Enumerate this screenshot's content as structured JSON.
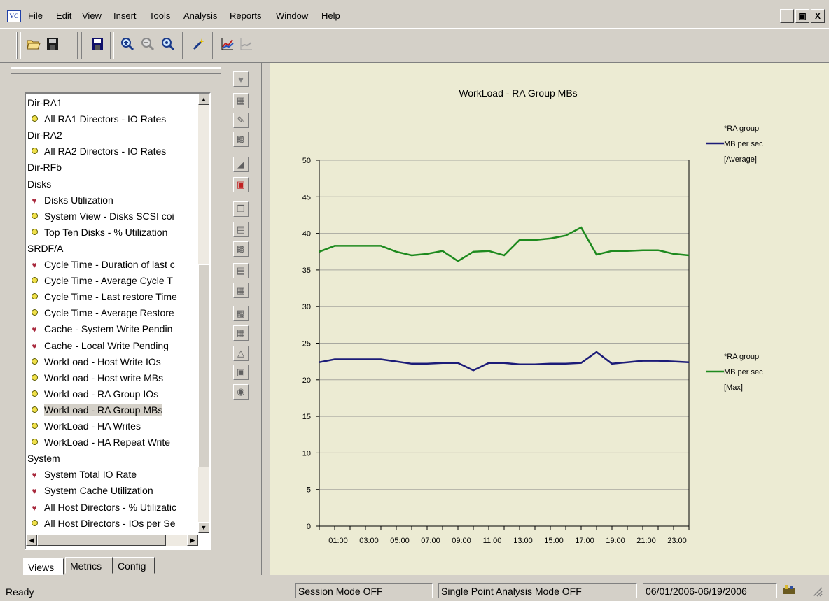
{
  "app": {
    "icon_text": "VC",
    "menu": [
      "File",
      "Edit",
      "View",
      "Insert",
      "Tools",
      "Analysis",
      "Reports",
      "Window",
      "Help"
    ],
    "window_buttons": [
      "_",
      "▣",
      "X"
    ]
  },
  "toolbar": {
    "buttons": [
      "open-folder-icon",
      "save-disk-icon",
      "save-icon",
      "zoom-in-icon",
      "zoom-out-icon",
      "zoom-reset-icon",
      "magic-wand-icon",
      "line-chart-icon",
      "chart-disabled-icon"
    ]
  },
  "tree": {
    "items": [
      {
        "label": "Dir-RA1",
        "kind": "group"
      },
      {
        "label": "All RA1 Directors - IO Rates",
        "kind": "dot"
      },
      {
        "label": "Dir-RA2",
        "kind": "group"
      },
      {
        "label": "All RA2 Directors - IO Rates",
        "kind": "dot"
      },
      {
        "label": "Dir-RFb",
        "kind": "group"
      },
      {
        "label": "Disks",
        "kind": "group"
      },
      {
        "label": "Disks Utilization",
        "kind": "heart"
      },
      {
        "label": "System View - Disks SCSI coi",
        "kind": "dot"
      },
      {
        "label": "Top Ten Disks - % Utilization",
        "kind": "dot"
      },
      {
        "label": "SRDF/A",
        "kind": "group"
      },
      {
        "label": "Cycle Time - Duration of last c",
        "kind": "heart"
      },
      {
        "label": "Cycle Time - Average Cycle T",
        "kind": "dot"
      },
      {
        "label": "Cycle Time - Last restore Time",
        "kind": "dot"
      },
      {
        "label": "Cycle Time - Average Restore",
        "kind": "dot"
      },
      {
        "label": "Cache - System Write Pendin",
        "kind": "heart"
      },
      {
        "label": "Cache - Local Write Pending",
        "kind": "heart"
      },
      {
        "label": "WorkLoad - Host Write IOs",
        "kind": "dot"
      },
      {
        "label": "WorkLoad - Host write MBs",
        "kind": "dot"
      },
      {
        "label": "WorkLoad - RA Group IOs",
        "kind": "dot"
      },
      {
        "label": "WorkLoad - RA Group MBs",
        "kind": "dot",
        "selected": true
      },
      {
        "label": "WorkLoad - HA Writes",
        "kind": "dot"
      },
      {
        "label": "WorkLoad - HA Repeat Write",
        "kind": "dot"
      },
      {
        "label": "System",
        "kind": "group"
      },
      {
        "label": "System Total IO Rate",
        "kind": "heart"
      },
      {
        "label": "System Cache Utilization",
        "kind": "heart"
      },
      {
        "label": "All Host Directors - % Utilizatic",
        "kind": "heart"
      },
      {
        "label": "All Host Directors - IOs per Se",
        "kind": "dot"
      }
    ]
  },
  "tabs": [
    "Views",
    "Metrics",
    "Config"
  ],
  "status": {
    "ready": "Ready",
    "session": "Session Mode OFF",
    "single_point": "Single Point Analysis Mode OFF",
    "date_range": "06/01/2006-06/19/2006"
  },
  "colors": {
    "average_series": "#1c1c78",
    "max_series": "#1e8a1e",
    "chart_bg": "#ecebd3"
  },
  "chart_data": {
    "type": "line",
    "title": "WorkLoad - RA Group MBs",
    "x_tick_labels": [
      "01:00",
      "03:00",
      "05:00",
      "07:00",
      "09:00",
      "11:00",
      "13:00",
      "15:00",
      "17:00",
      "19:00",
      "21:00",
      "23:00"
    ],
    "x": [
      "00:00",
      "01:00",
      "02:00",
      "03:00",
      "04:00",
      "05:00",
      "06:00",
      "07:00",
      "08:00",
      "09:00",
      "10:00",
      "11:00",
      "12:00",
      "13:00",
      "14:00",
      "15:00",
      "16:00",
      "17:00",
      "18:00",
      "19:00",
      "20:00",
      "21:00",
      "22:00",
      "23:00",
      "24:00"
    ],
    "ylim": [
      0,
      50
    ],
    "y_ticks": [
      0,
      5,
      10,
      15,
      20,
      25,
      30,
      35,
      40,
      45,
      50
    ],
    "grid": true,
    "legend_position": "right",
    "series": [
      {
        "name_lines": [
          "*RA group",
          "MB per sec",
          "[Average]"
        ],
        "values": [
          22.4,
          22.8,
          22.8,
          22.8,
          22.8,
          22.5,
          22.2,
          22.2,
          22.3,
          22.3,
          21.3,
          22.3,
          22.3,
          22.1,
          22.1,
          22.2,
          22.2,
          22.3,
          23.8,
          22.2,
          22.4,
          22.6,
          22.6,
          22.5,
          22.4
        ]
      },
      {
        "name_lines": [
          "*RA group",
          "MB per sec",
          "[Max]"
        ],
        "values": [
          37.5,
          38.3,
          38.3,
          38.3,
          38.3,
          37.5,
          37.0,
          37.2,
          37.6,
          36.2,
          37.5,
          37.6,
          37.0,
          39.1,
          39.1,
          39.3,
          39.7,
          40.8,
          37.1,
          37.6,
          37.6,
          37.7,
          37.7,
          37.2,
          37.0
        ]
      }
    ]
  }
}
